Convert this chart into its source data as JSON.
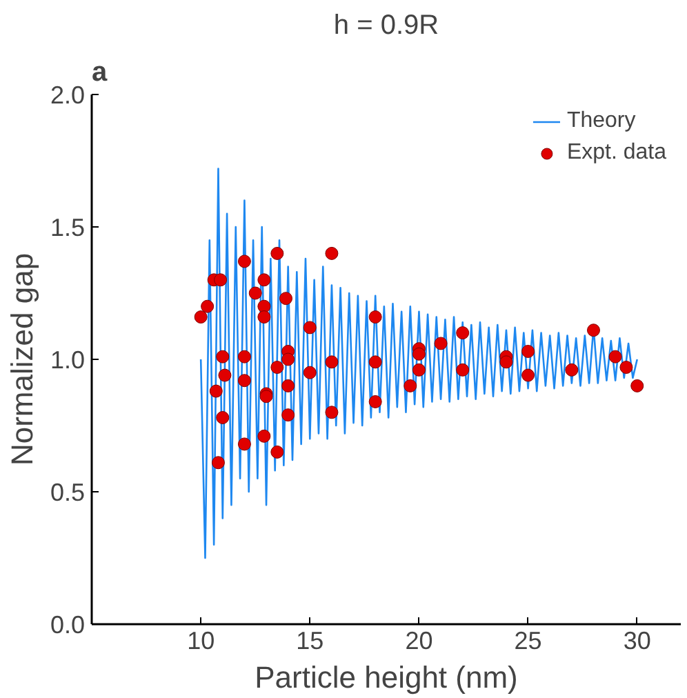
{
  "chart_data": {
    "type": "line",
    "title": "h = 0.9R",
    "xlabel": "Particle height (nm)",
    "ylabel": "Normalized gap",
    "annotations": [
      "a"
    ],
    "xlim": [
      5,
      32
    ],
    "ylim": [
      0,
      2
    ],
    "xticks": [
      10,
      15,
      20,
      25,
      30
    ],
    "yticks": [
      {
        "value": 0,
        "label": "0.0"
      },
      {
        "value": 0.5,
        "label": "0.5"
      },
      {
        "value": 1,
        "label": "1.0"
      },
      {
        "value": 1.5,
        "label": "1.5"
      },
      {
        "value": 2,
        "label": "2.0"
      }
    ],
    "grid": false,
    "legend": "top right",
    "series": [
      {
        "name": "Theory",
        "color": "#1e88f0",
        "line_style": "solid",
        "x": [
          10.0,
          10.2,
          10.4,
          10.6,
          10.8,
          11.0,
          11.2,
          11.4,
          11.6,
          11.8,
          12.0,
          12.2,
          12.4,
          12.6,
          12.8,
          13.0,
          13.2,
          13.4,
          13.6,
          13.8,
          14.0,
          14.2,
          14.4,
          14.6,
          14.8,
          15.0,
          15.2,
          15.4,
          15.6,
          15.8,
          16.0,
          16.2,
          16.4,
          16.6,
          16.8,
          17.0,
          17.2,
          17.4,
          17.6,
          17.8,
          18.0,
          18.2,
          18.4,
          18.6,
          18.8,
          19.0,
          19.2,
          19.4,
          19.6,
          19.8,
          20.0,
          20.2,
          20.4,
          20.6,
          20.8,
          21.0,
          21.2,
          21.4,
          21.6,
          21.8,
          22.0,
          22.2,
          22.4,
          22.6,
          22.8,
          23.0,
          23.2,
          23.4,
          23.6,
          23.8,
          24.0,
          24.2,
          24.4,
          24.6,
          24.8,
          25.0,
          25.2,
          25.4,
          25.6,
          25.8,
          26.0,
          26.2,
          26.4,
          26.6,
          26.8,
          27.0,
          27.2,
          27.4,
          27.6,
          27.8,
          28.0,
          28.2,
          28.4,
          28.6,
          28.8,
          29.0,
          29.2,
          29.4,
          29.6,
          29.8,
          30.0
        ],
        "values": [
          1.0,
          0.25,
          1.45,
          0.3,
          1.72,
          0.4,
          1.55,
          0.45,
          1.5,
          0.55,
          1.6,
          0.5,
          1.45,
          0.55,
          1.5,
          0.45,
          1.38,
          0.58,
          1.45,
          0.6,
          1.35,
          0.62,
          1.33,
          0.68,
          1.38,
          0.7,
          1.3,
          0.72,
          1.35,
          0.7,
          1.28,
          0.75,
          1.27,
          0.72,
          1.25,
          0.76,
          1.24,
          0.75,
          1.22,
          0.78,
          1.24,
          0.8,
          1.2,
          0.78,
          1.21,
          0.82,
          1.18,
          0.8,
          1.2,
          0.83,
          1.18,
          0.82,
          1.17,
          0.84,
          1.16,
          0.85,
          1.15,
          0.84,
          1.16,
          0.85,
          1.14,
          0.86,
          1.13,
          0.85,
          1.14,
          0.87,
          1.12,
          0.86,
          1.13,
          0.88,
          1.11,
          0.87,
          1.12,
          0.88,
          1.1,
          0.89,
          1.11,
          0.88,
          1.1,
          0.9,
          1.09,
          0.89,
          1.1,
          0.9,
          1.09,
          0.91,
          1.08,
          0.9,
          1.09,
          0.91,
          1.12,
          0.91,
          1.08,
          0.92,
          1.07,
          0.92,
          1.08,
          0.93,
          1.06,
          0.93,
          1.0
        ]
      },
      {
        "name": "Expt. data",
        "type": "scatter",
        "color": "#e00000",
        "marker": "circle",
        "x": [
          10.0,
          10.3,
          10.6,
          10.9,
          10.8,
          10.7,
          11.0,
          11.1,
          11.0,
          12.0,
          12.0,
          12.0,
          12.0,
          12.5,
          12.9,
          12.9,
          12.9,
          13.0,
          13.0,
          12.9,
          13.5,
          13.5,
          13.5,
          13.9,
          14.0,
          14.0,
          14.0,
          14.0,
          15.0,
          15.0,
          16.0,
          16.0,
          16.0,
          18.0,
          18.0,
          18.0,
          19.6,
          20.0,
          20.0,
          20.0,
          21.0,
          22.0,
          22.0,
          24.0,
          24.0,
          25.0,
          25.0,
          27.0,
          28.0,
          29.0,
          29.5,
          30.0
        ],
        "values": [
          1.16,
          1.2,
          1.3,
          1.3,
          0.61,
          0.88,
          1.01,
          0.94,
          0.78,
          1.37,
          1.01,
          0.92,
          0.68,
          1.25,
          1.3,
          1.2,
          1.16,
          0.87,
          0.86,
          0.71,
          1.4,
          0.97,
          0.65,
          1.23,
          1.03,
          1.0,
          0.9,
          0.79,
          1.12,
          0.95,
          1.4,
          0.99,
          0.8,
          1.16,
          0.99,
          0.84,
          0.9,
          1.04,
          1.02,
          0.96,
          1.06,
          1.1,
          0.96,
          1.01,
          0.99,
          1.03,
          0.94,
          0.96,
          1.11,
          1.01,
          0.97,
          0.9
        ]
      }
    ]
  }
}
